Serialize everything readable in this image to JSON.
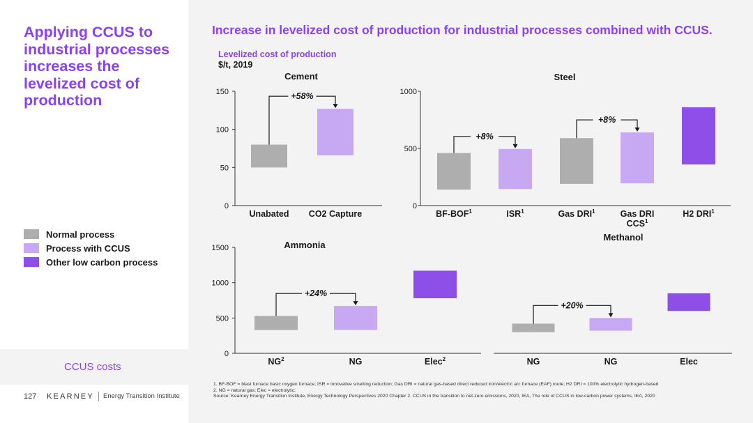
{
  "sidebar": {
    "title": "Applying CCUS to industrial processes increases the levelized cost of production",
    "legend": [
      {
        "label": "Normal process",
        "color": "#aeaeae"
      },
      {
        "label": "Process with CCUS",
        "color": "#c6a8f3"
      },
      {
        "label": "Other low carbon process",
        "color": "#8d4fe8"
      }
    ],
    "section_label": "CCUS costs",
    "page_number": "127",
    "brand": "KEARNEY",
    "brand_sub": "Energy Transition Institute"
  },
  "main": {
    "title": "Increase in levelized cost of production for industrial processes combined with CCUS.",
    "subtitle": "Levelized cost of production",
    "unit": "$/t, 2019"
  },
  "colors": {
    "normal": "#aeaeae",
    "ccus": "#c6a8f3",
    "low_carbon": "#8d4fe8",
    "accent": "#8a3ffc"
  },
  "chart_data": [
    {
      "id": "cement",
      "type": "bar",
      "subtype": "floating-range",
      "title": "Cement",
      "ylim": [
        0,
        150
      ],
      "yticks": [
        0,
        50,
        100,
        150
      ],
      "categories": [
        "Unabated",
        "CO2 Capture"
      ],
      "ranges": [
        [
          50,
          80
        ],
        [
          66,
          127
        ]
      ],
      "kinds": [
        "normal",
        "ccus"
      ],
      "annotations": [
        {
          "text": "+58%",
          "from": 0,
          "to": 1
        }
      ]
    },
    {
      "id": "steel",
      "type": "bar",
      "subtype": "floating-range",
      "title": "Steel",
      "ylim": [
        0,
        1000
      ],
      "yticks": [
        0,
        500,
        1000
      ],
      "categories": [
        [
          "BF-BOF",
          "1"
        ],
        [
          "ISR",
          "1"
        ],
        [
          "Gas DRI",
          "1"
        ],
        [
          "Gas DRI",
          "CCS",
          "1"
        ],
        [
          "H2 DRI",
          "1"
        ]
      ],
      "ranges": [
        [
          140,
          460
        ],
        [
          145,
          495
        ],
        [
          190,
          590
        ],
        [
          195,
          640
        ],
        [
          360,
          860
        ]
      ],
      "kinds": [
        "normal",
        "ccus",
        "normal",
        "ccus",
        "low_carbon"
      ],
      "annotations": [
        {
          "text": "+8%",
          "from": 0,
          "to": 1
        },
        {
          "text": "+8%",
          "from": 2,
          "to": 3
        }
      ]
    },
    {
      "id": "ammonia",
      "type": "bar",
      "subtype": "floating-range",
      "title": "Ammonia",
      "ylim": [
        0,
        1500
      ],
      "yticks": [
        0,
        500,
        1000,
        1500
      ],
      "categories": [
        [
          "NG",
          "2"
        ],
        [
          "NG"
        ],
        [
          "Elec",
          "2"
        ]
      ],
      "ranges": [
        [
          330,
          530
        ],
        [
          330,
          670
        ],
        [
          780,
          1170
        ]
      ],
      "kinds": [
        "normal",
        "ccus",
        "low_carbon"
      ],
      "annotations": [
        {
          "text": "+24%",
          "from": 0,
          "to": 1
        }
      ]
    },
    {
      "id": "methanol",
      "type": "bar",
      "subtype": "floating-range",
      "title": "Methanol",
      "ylim": [
        0,
        1500
      ],
      "categories": [
        [
          "NG"
        ],
        [
          "NG"
        ],
        [
          "Elec"
        ]
      ],
      "ranges": [
        [
          300,
          420
        ],
        [
          320,
          500
        ],
        [
          600,
          850
        ]
      ],
      "kinds": [
        "normal",
        "ccus",
        "low_carbon"
      ],
      "annotations": [
        {
          "text": "+20%",
          "from": 0,
          "to": 1
        }
      ]
    }
  ],
  "footnotes": [
    "1. BF-BOF = blast furnace basic oxygen furnace; ISR = innovative smelting reduction; Gas DRI = natural gas-based direct reduced iron/electric arc furnace (EAF) route; H2 DRI = 100% electrolytic hydrogen-based",
    "2. NG = natural gas; Elec = electrolytic;",
    "Source: Kearney Energy Transition Institute, Energy Technology Perspectives 2020 Chapter 2. CCUS in the transition to net-zero emissions, 2020, IEA, The role of CCUS in low-carbon power systems, IEA, 2020"
  ]
}
